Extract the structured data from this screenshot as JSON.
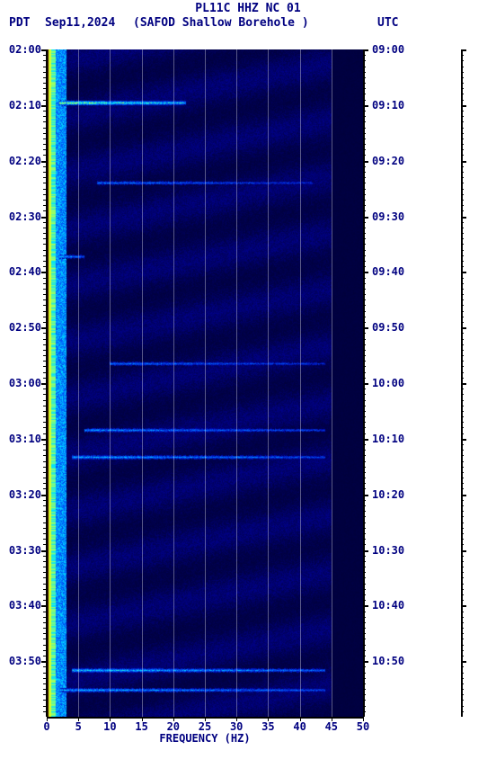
{
  "header": {
    "title": "PL11C HHZ NC 01",
    "left_tz": "PDT",
    "date": "Sep11,2024",
    "station": "(SAFOD Shallow Borehole )",
    "right_tz": "UTC"
  },
  "chart": {
    "type": "spectrogram",
    "background_color": "#ffffff",
    "title_color": "#000080",
    "font_family": "monospace",
    "title_fontsize": 13,
    "label_fontsize": 12,
    "plot_bg": "#00004d",
    "xaxis": {
      "label": "FREQUENCY (HZ)",
      "min": 0,
      "max": 50,
      "tick_step": 5,
      "ticks": [
        0,
        5,
        10,
        15,
        20,
        25,
        30,
        35,
        40,
        45,
        50
      ]
    },
    "yaxis_left": {
      "tz": "PDT",
      "ticks": [
        "02:00",
        "02:10",
        "02:20",
        "02:30",
        "02:40",
        "02:50",
        "03:00",
        "03:10",
        "03:20",
        "03:30",
        "03:40",
        "03:50"
      ]
    },
    "yaxis_right": {
      "tz": "UTC",
      "ticks": [
        "09:00",
        "09:10",
        "09:20",
        "09:30",
        "09:40",
        "09:50",
        "10:00",
        "10:10",
        "10:20",
        "10:30",
        "10:40",
        "10:50"
      ]
    },
    "minor_tick_count_per_major": 10,
    "gridlines_x": [
      5,
      10,
      15,
      20,
      25,
      30,
      35,
      40,
      45
    ],
    "colormap": {
      "low": "#000033",
      "mid1": "#00004d",
      "mid2": "#0000a0",
      "mid3": "#0060ff",
      "high1": "#00e0ff",
      "high2": "#80ff80",
      "peak": "#ffff00"
    },
    "low_freq_band": {
      "hz_start": 0,
      "hz_end": 3,
      "color_left": "#400000",
      "color_mid": "#ffff00",
      "color_right": "#00d0ff"
    },
    "edge_band": {
      "hz_start": 45,
      "hz_end": 50,
      "color": "#000033"
    },
    "events": [
      {
        "time_idx": 0.08,
        "hz_start": 2,
        "hz_end": 22,
        "intensity": 0.9
      },
      {
        "time_idx": 0.2,
        "hz_start": 8,
        "hz_end": 42,
        "intensity": 0.5
      },
      {
        "time_idx": 0.31,
        "hz_start": 2,
        "hz_end": 6,
        "intensity": 0.6
      },
      {
        "time_idx": 0.47,
        "hz_start": 10,
        "hz_end": 44,
        "intensity": 0.5
      },
      {
        "time_idx": 0.57,
        "hz_start": 6,
        "hz_end": 44,
        "intensity": 0.55
      },
      {
        "time_idx": 0.61,
        "hz_start": 4,
        "hz_end": 44,
        "intensity": 0.6
      },
      {
        "time_idx": 0.93,
        "hz_start": 4,
        "hz_end": 44,
        "intensity": 0.65
      },
      {
        "time_idx": 0.96,
        "hz_start": 2,
        "hz_end": 44,
        "intensity": 0.6
      }
    ]
  }
}
